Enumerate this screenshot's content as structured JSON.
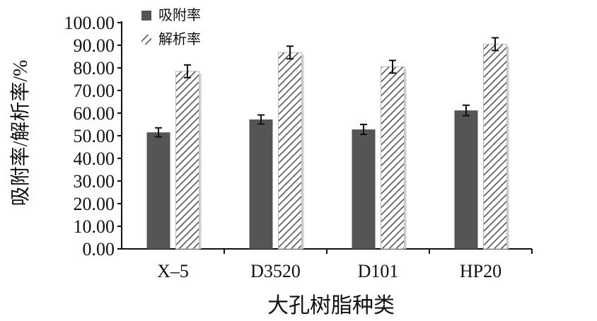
{
  "chart_data": {
    "type": "bar",
    "title": "",
    "xlabel": "大孔树脂种类",
    "ylabel": "吸附率/解析率/%",
    "ylim": [
      0,
      100
    ],
    "yticks": [
      "0.00",
      "10.00",
      "20.00",
      "30.00",
      "40.00",
      "50.00",
      "60.00",
      "70.00",
      "80.00",
      "90.00",
      "100.00"
    ],
    "categories": [
      "X–5",
      "D3520",
      "D101",
      "HP20"
    ],
    "series": [
      {
        "name": "吸附率",
        "values": [
          51.5,
          57.2,
          52.8,
          61.2
        ],
        "errors": [
          2.0,
          2.0,
          2.2,
          2.3
        ],
        "color": "#555555",
        "pattern": "solid"
      },
      {
        "name": "解析率",
        "values": [
          78.5,
          86.8,
          80.5,
          90.5
        ],
        "errors": [
          2.8,
          2.8,
          2.8,
          2.8
        ],
        "color": "#555555",
        "pattern": "hatch"
      }
    ],
    "legend_position": "top-left",
    "grid": false
  }
}
